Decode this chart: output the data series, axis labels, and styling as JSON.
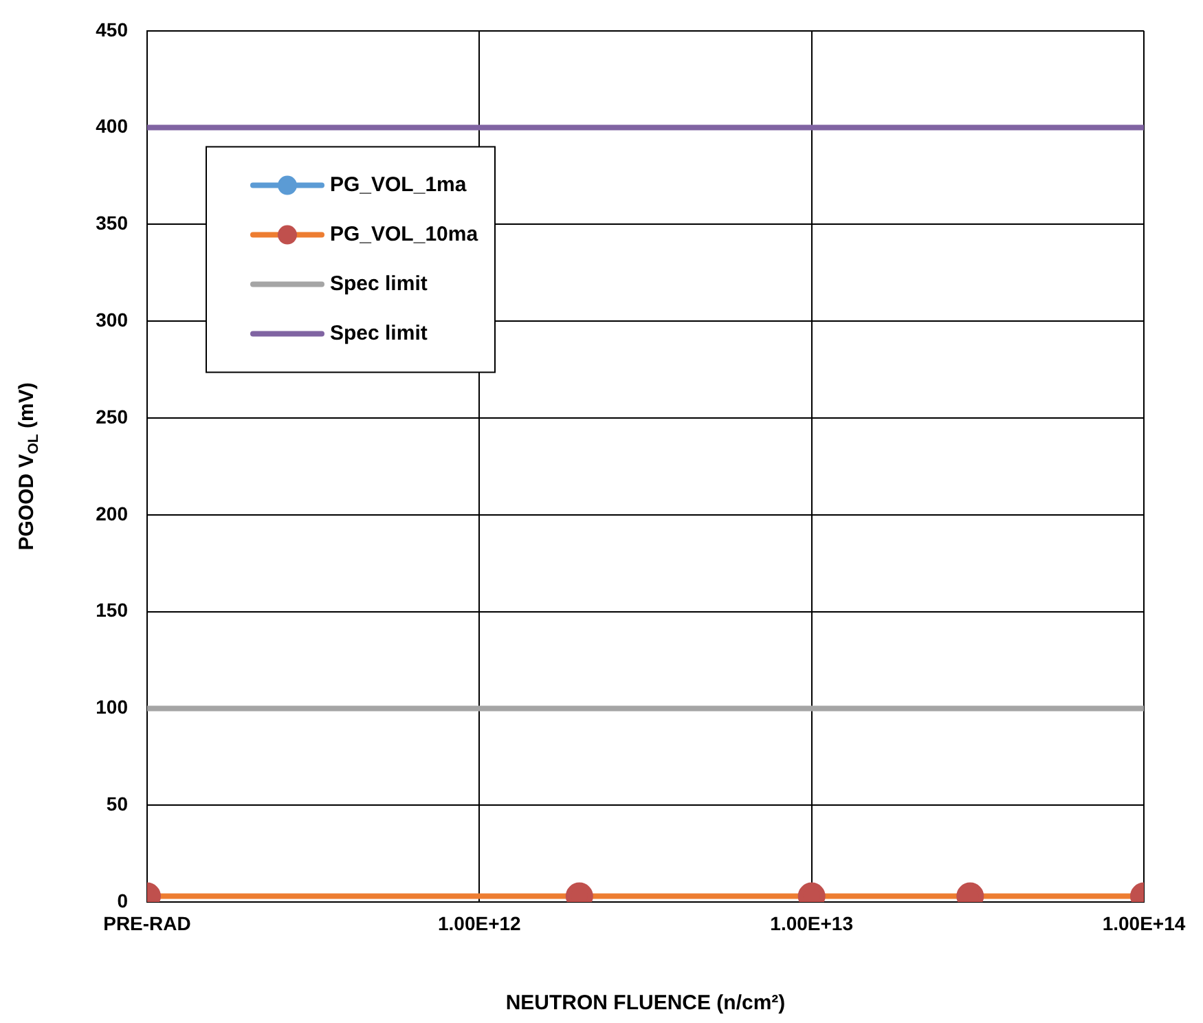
{
  "chart_data": {
    "type": "line",
    "ylabel": "PGOOD V$_{OL}$ (mV)",
    "xlabel": "NEUTRON FLUENCE (n/cm²)",
    "log": "x",
    "x": [
      100000000000.0,
      2000000000000.0,
      10000000000000.0,
      30000000000000.0,
      100000000000000.0
    ],
    "xlim": [
      100000000000.0,
      100000000000000.0
    ],
    "xticks": [
      {
        "value": 100000000000.0,
        "label": "PRE-RAD"
      },
      {
        "value": 1000000000000.0,
        "label": "1.00E+12"
      },
      {
        "value": 10000000000000.0,
        "label": "1.00E+13"
      },
      {
        "value": 100000000000000.0,
        "label": "1.00E+14"
      }
    ],
    "ylim": [
      0,
      450
    ],
    "yticks": [
      0,
      50,
      100,
      150,
      200,
      250,
      300,
      350,
      400,
      450
    ],
    "grid": true,
    "legend": "top left",
    "marker": "circle",
    "line_style": "solid",
    "series": [
      {
        "name": "PG_VOL_1ma",
        "color": "#5b9bd5",
        "values": [
          null,
          null,
          null,
          null,
          null
        ]
      },
      {
        "name": "PG_VOL_10ma",
        "color": "#ed7d31",
        "colors": [
          "#c0504d",
          "#c0504d",
          "#c0504d",
          "#c0504d",
          "#c0504d"
        ],
        "values": [
          3,
          3,
          3,
          3,
          3
        ]
      },
      {
        "name": "Spec limit",
        "color": "#a5a5a5",
        "marker": "none",
        "values": [
          100,
          100,
          100,
          100,
          100
        ]
      },
      {
        "name": "Spec limit",
        "color": "#8064a2",
        "marker": "none",
        "values": [
          400,
          400,
          400,
          400,
          400
        ]
      }
    ]
  }
}
